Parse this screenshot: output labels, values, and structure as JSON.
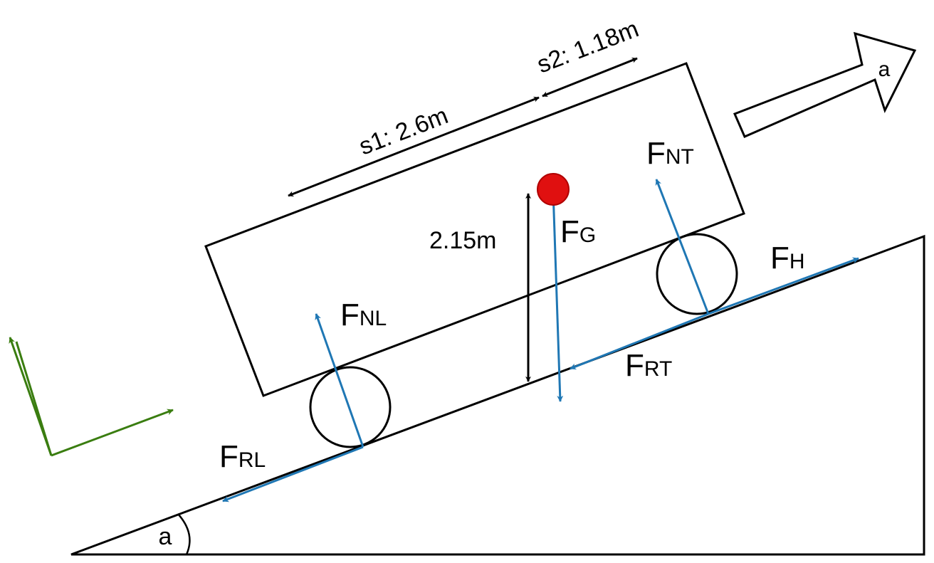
{
  "colors": {
    "force": "#1f77b4",
    "axes": "#3a7d10",
    "ink": "#000000",
    "com": "#e01010"
  },
  "dims": {
    "s1": "s1: 2.6m",
    "s2": "s2: 1.18m",
    "height": "2.15m"
  },
  "angle_label": "a",
  "acceleration_label": "a",
  "forces": {
    "fnt": {
      "main": "F",
      "sub": "NT"
    },
    "fg": {
      "main": "F",
      "sub": "G"
    },
    "fh": {
      "main": "F",
      "sub": "H"
    },
    "fnl": {
      "main": "F",
      "sub": "NL"
    },
    "frt": {
      "main": "F",
      "sub": "RT"
    },
    "frl": {
      "main": "F",
      "sub": "RL"
    }
  }
}
